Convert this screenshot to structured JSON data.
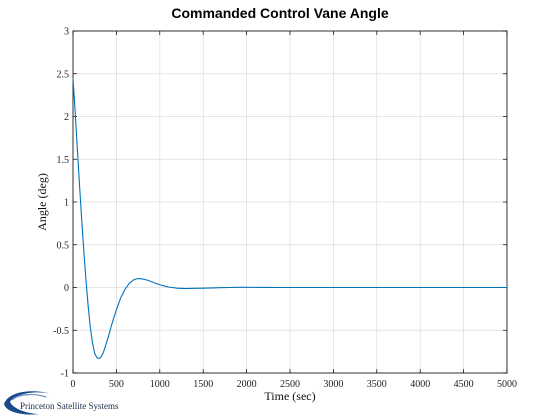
{
  "chart_data": {
    "type": "line",
    "title": "Commanded Control Vane Angle",
    "xlabel": "Time (sec)",
    "ylabel": "Angle (deg)",
    "xlim": [
      0,
      5000
    ],
    "ylim": [
      -1,
      3
    ],
    "x_ticks": [
      0,
      500,
      1000,
      1500,
      2000,
      2500,
      3000,
      3500,
      4000,
      4500,
      5000
    ],
    "x_tick_labels": [
      "0",
      "500",
      "1000",
      "1500",
      "2000",
      "2500",
      "3000",
      "3500",
      "4000",
      "4500",
      "5000"
    ],
    "y_ticks": [
      -1,
      -0.5,
      0,
      0.5,
      1,
      1.5,
      2,
      2.5,
      3
    ],
    "y_tick_labels": [
      "-1",
      "-0.5",
      "0",
      "0.5",
      "1",
      "1.5",
      "2",
      "2.5",
      "3"
    ],
    "grid": true,
    "series": [
      {
        "color": "#0072bd",
        "x": [
          0,
          25,
          50,
          75,
          100,
          125,
          150,
          175,
          200,
          225,
          250,
          275,
          300,
          325,
          350,
          375,
          400,
          425,
          450,
          475,
          500,
          550,
          600,
          650,
          700,
          750,
          800,
          850,
          900,
          950,
          1000,
          1050,
          1100,
          1200,
          1300,
          1400,
          1500,
          1600,
          1700,
          1800,
          1900,
          2000,
          2200,
          2400,
          2600,
          2800,
          3000,
          3500,
          4000,
          4500,
          5000
        ],
        "y": [
          2.45,
          2.05,
          1.62,
          1.2,
          0.8,
          0.42,
          0.08,
          -0.22,
          -0.47,
          -0.65,
          -0.77,
          -0.82,
          -0.83,
          -0.81,
          -0.76,
          -0.68,
          -0.6,
          -0.51,
          -0.42,
          -0.34,
          -0.26,
          -0.12,
          -0.02,
          0.05,
          0.09,
          0.105,
          0.1,
          0.088,
          0.07,
          0.05,
          0.032,
          0.018,
          0.006,
          -0.008,
          -0.012,
          -0.01,
          -0.008,
          -0.005,
          -0.002,
          0.0,
          0.002,
          0.002,
          0.001,
          0.0,
          0.0,
          0.0,
          0.0,
          0.0,
          0.0,
          0.0,
          0.0
        ]
      }
    ]
  },
  "logo": {
    "text": "Princeton Satellite Systems",
    "color": "#1a4a8a"
  }
}
